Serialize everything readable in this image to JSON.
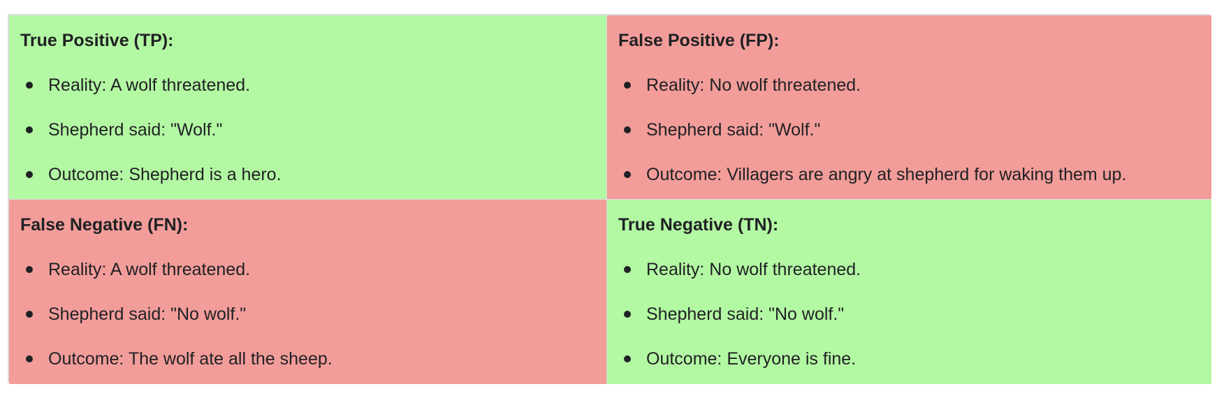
{
  "cells": [
    {
      "title": "True Positive (TP):",
      "outcome_type": "good",
      "items": [
        "Reality: A wolf threatened.",
        "Shepherd said: \"Wolf.\"",
        "Outcome: Shepherd is a hero."
      ]
    },
    {
      "title": "False Positive (FP):",
      "outcome_type": "bad",
      "items": [
        "Reality: No wolf threatened.",
        "Shepherd said: \"Wolf.\"",
        "Outcome: Villagers are angry at shepherd for waking them up."
      ]
    },
    {
      "title": "False Negative (FN):",
      "outcome_type": "bad",
      "items": [
        "Reality: A wolf threatened.",
        "Shepherd said: \"No wolf.\"",
        "Outcome: The wolf ate all the sheep."
      ]
    },
    {
      "title": "True Negative (TN):",
      "outcome_type": "good",
      "items": [
        "Reality: No wolf threatened.",
        "Shepherd said: \"No wolf.\"",
        "Outcome: Everyone is fine."
      ]
    }
  ],
  "colors": {
    "good": "#b3f8a3",
    "bad": "#f29d9a",
    "border": "#dcdcdc",
    "text": "#202124"
  }
}
